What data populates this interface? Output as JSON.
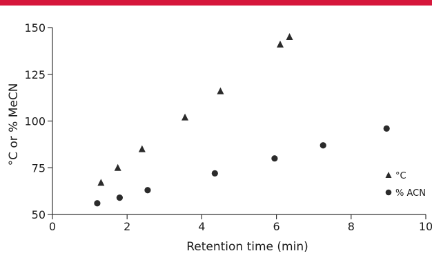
{
  "header_color": "#d6173b",
  "chart_data": {
    "type": "scatter",
    "title": "",
    "xlabel": "Retention time (min)",
    "ylabel": "°C or % MeCN",
    "xlim": [
      0,
      10
    ],
    "ylim": [
      50,
      150
    ],
    "x_ticks": [
      0,
      2,
      4,
      6,
      8,
      10
    ],
    "y_ticks": [
      50,
      75,
      100,
      125,
      150
    ],
    "grid": false,
    "legend_position": "bottom-right",
    "series": [
      {
        "name": "°C",
        "marker": "triangle",
        "color": "#2b2b2b",
        "x": [
          1.3,
          1.75,
          2.4,
          3.55,
          4.5,
          6.1,
          6.35
        ],
        "y": [
          67,
          75,
          85,
          102,
          116,
          141,
          145
        ]
      },
      {
        "name": "% ACN",
        "marker": "circle",
        "color": "#2b2b2b",
        "x": [
          1.2,
          1.8,
          2.55,
          4.35,
          5.95,
          7.25,
          8.95
        ],
        "y": [
          56,
          59,
          63,
          72,
          80,
          87,
          96
        ]
      }
    ]
  }
}
